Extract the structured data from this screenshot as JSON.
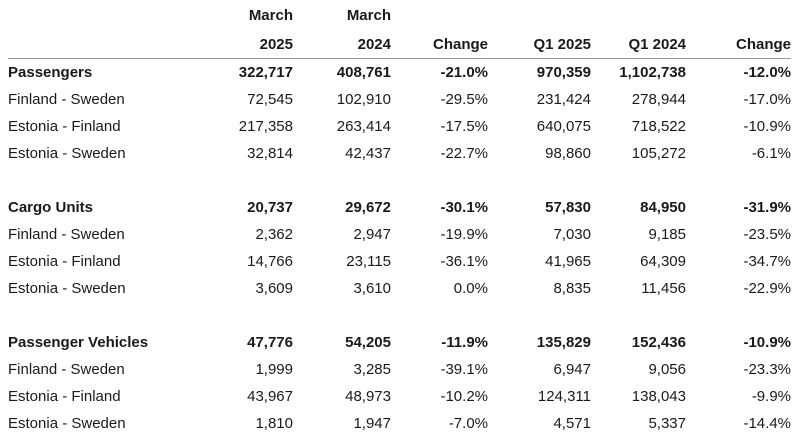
{
  "header": {
    "march_2025_line1": "March",
    "march_2025_line2": "2025",
    "march_2024_line1": "March",
    "march_2024_line2": "2024",
    "change_march": "Change",
    "q1_2025": "Q1 2025",
    "q1_2024": "Q1 2024",
    "change_q1": "Change"
  },
  "colors": {
    "background": "#ffffff",
    "text": "#1a1a1a",
    "rule": "#9b9b9b"
  },
  "chart_data": {
    "type": "table",
    "columns": [
      "",
      "March 2025",
      "March 2024",
      "Change",
      "Q1 2025",
      "Q1 2024",
      "Change"
    ],
    "groups": [
      {
        "name": "Passengers",
        "total": [
          "322,717",
          "408,761",
          "-21.0%",
          "970,359",
          "1,102,738",
          "-12.0%"
        ],
        "routes": [
          {
            "label": "Finland - Sweden",
            "values": [
              "72,545",
              "102,910",
              "-29.5%",
              "231,424",
              "278,944",
              "-17.0%"
            ]
          },
          {
            "label": "Estonia - Finland",
            "values": [
              "217,358",
              "263,414",
              "-17.5%",
              "640,075",
              "718,522",
              "-10.9%"
            ]
          },
          {
            "label": "Estonia - Sweden",
            "values": [
              "32,814",
              "42,437",
              "-22.7%",
              "98,860",
              "105,272",
              "-6.1%"
            ]
          }
        ]
      },
      {
        "name": "Cargo Units",
        "total": [
          "20,737",
          "29,672",
          "-30.1%",
          "57,830",
          "84,950",
          "-31.9%"
        ],
        "routes": [
          {
            "label": "Finland - Sweden",
            "values": [
              "2,362",
              "2,947",
              "-19.9%",
              "7,030",
              "9,185",
              "-23.5%"
            ]
          },
          {
            "label": "Estonia - Finland",
            "values": [
              "14,766",
              "23,115",
              "-36.1%",
              "41,965",
              "64,309",
              "-34.7%"
            ]
          },
          {
            "label": "Estonia - Sweden",
            "values": [
              "3,609",
              "3,610",
              "0.0%",
              "8,835",
              "11,456",
              "-22.9%"
            ]
          }
        ]
      },
      {
        "name": "Passenger Vehicles",
        "total": [
          "47,776",
          "54,205",
          "-11.9%",
          "135,829",
          "152,436",
          "-10.9%"
        ],
        "routes": [
          {
            "label": "Finland - Sweden",
            "values": [
              "1,999",
              "3,285",
              "-39.1%",
              "6,947",
              "9,056",
              "-23.3%"
            ]
          },
          {
            "label": "Estonia - Finland",
            "values": [
              "43,967",
              "48,973",
              "-10.2%",
              "124,311",
              "138,043",
              "-9.9%"
            ]
          },
          {
            "label": "Estonia - Sweden",
            "values": [
              "1,810",
              "1,947",
              "-7.0%",
              "4,571",
              "5,337",
              "-14.4%"
            ]
          }
        ]
      }
    ]
  }
}
